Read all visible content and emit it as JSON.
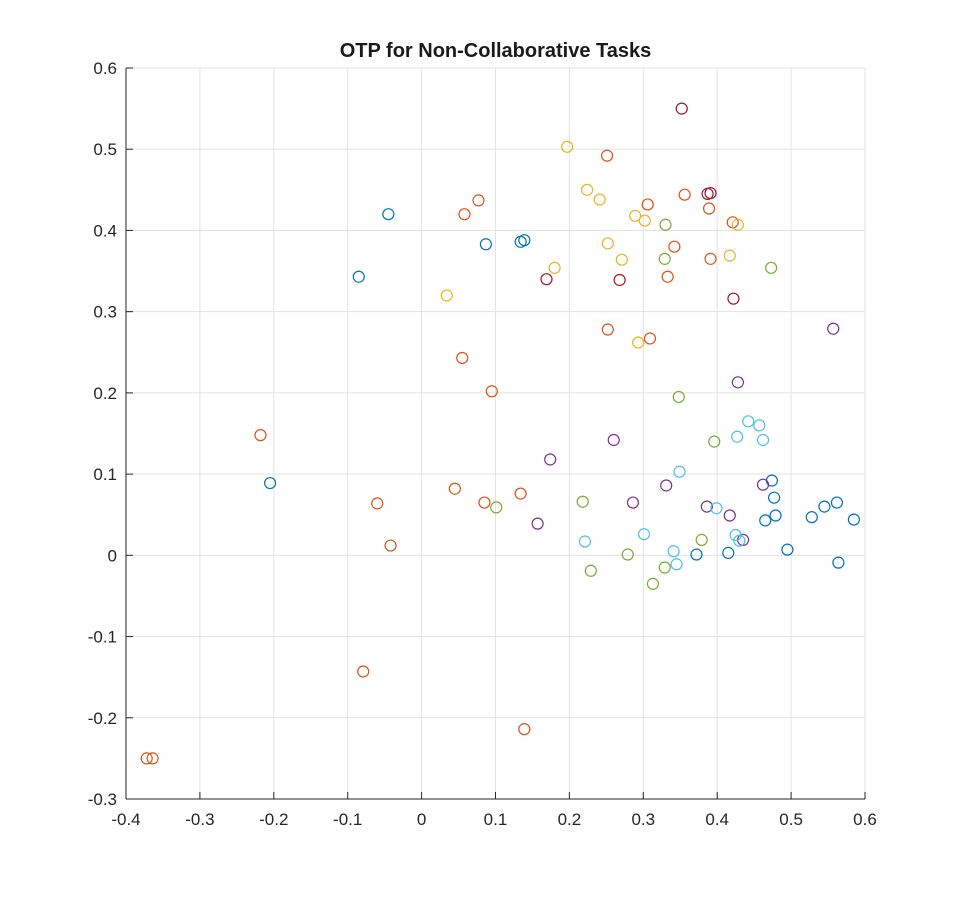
{
  "chart_data": {
    "type": "scatter",
    "title": "OTP for Non-Collaborative Tasks",
    "xlabel": "",
    "ylabel": "",
    "xlim": [
      -0.4,
      0.6
    ],
    "ylim": [
      -0.3,
      0.6
    ],
    "xticks": [
      -0.4,
      -0.3,
      -0.2,
      -0.1,
      0,
      0.1,
      0.2,
      0.3,
      0.4,
      0.5,
      0.6
    ],
    "yticks": [
      -0.3,
      -0.2,
      -0.1,
      0,
      0.1,
      0.2,
      0.3,
      0.4,
      0.5,
      0.6
    ],
    "xtick_labels": [
      "-0.4",
      "-0.3",
      "-0.2",
      "-0.1",
      "0",
      "0.1",
      "0.2",
      "0.3",
      "0.4",
      "0.5",
      "0.6"
    ],
    "ytick_labels": [
      "-0.3",
      "-0.2",
      "-0.1",
      "0",
      "0.1",
      "0.2",
      "0.3",
      "0.4",
      "0.5",
      "0.6"
    ],
    "grid": true,
    "marker": "open-circle",
    "series": [
      {
        "color": "#0072BD",
        "points": [
          [
            -0.045,
            0.42
          ],
          [
            -0.085,
            0.343
          ],
          [
            0.087,
            0.383
          ],
          [
            0.134,
            0.386
          ],
          [
            0.139,
            0.388
          ],
          [
            -0.205,
            0.089
          ],
          [
            0.372,
            0.001
          ],
          [
            0.415,
            0.003
          ],
          [
            0.465,
            0.043
          ],
          [
            0.474,
            0.092
          ],
          [
            0.477,
            0.071
          ],
          [
            0.479,
            0.049
          ],
          [
            0.495,
            0.007
          ],
          [
            0.528,
            0.047
          ],
          [
            0.545,
            0.06
          ],
          [
            0.562,
            0.065
          ],
          [
            0.564,
            -0.009
          ],
          [
            0.585,
            0.044
          ]
        ]
      },
      {
        "color": "#D95319",
        "points": [
          [
            0.077,
            0.437
          ],
          [
            0.058,
            0.42
          ],
          [
            0.055,
            0.243
          ],
          [
            0.095,
            0.202
          ],
          [
            -0.218,
            0.148
          ],
          [
            0.045,
            0.082
          ],
          [
            0.085,
            0.065
          ],
          [
            0.134,
            0.076
          ],
          [
            -0.06,
            0.064
          ],
          [
            -0.042,
            0.012
          ],
          [
            -0.079,
            -0.143
          ],
          [
            0.139,
            -0.214
          ],
          [
            -0.372,
            -0.25
          ],
          [
            -0.364,
            -0.25
          ],
          [
            0.251,
            0.492
          ],
          [
            0.306,
            0.432
          ],
          [
            0.356,
            0.444
          ],
          [
            0.389,
            0.427
          ],
          [
            0.342,
            0.38
          ],
          [
            0.391,
            0.365
          ],
          [
            0.333,
            0.343
          ],
          [
            0.252,
            0.278
          ],
          [
            0.309,
            0.267
          ],
          [
            0.421,
            0.41
          ]
        ]
      },
      {
        "color": "#EDB120",
        "points": [
          [
            0.197,
            0.503
          ],
          [
            0.224,
            0.45
          ],
          [
            0.241,
            0.438
          ],
          [
            0.289,
            0.418
          ],
          [
            0.302,
            0.412
          ],
          [
            0.252,
            0.384
          ],
          [
            0.271,
            0.364
          ],
          [
            0.18,
            0.354
          ],
          [
            0.034,
            0.32
          ],
          [
            0.293,
            0.262
          ],
          [
            0.417,
            0.369
          ],
          [
            0.428,
            0.407
          ]
        ]
      },
      {
        "color": "#A2142F",
        "points": [
          [
            0.352,
            0.55
          ],
          [
            0.387,
            0.445
          ],
          [
            0.391,
            0.446
          ],
          [
            0.268,
            0.339
          ],
          [
            0.169,
            0.34
          ],
          [
            0.422,
            0.316
          ]
        ]
      },
      {
        "color": "#7E2F8E",
        "points": [
          [
            0.557,
            0.279
          ],
          [
            0.428,
            0.213
          ],
          [
            0.26,
            0.142
          ],
          [
            0.174,
            0.118
          ],
          [
            0.331,
            0.086
          ],
          [
            0.462,
            0.087
          ],
          [
            0.286,
            0.065
          ],
          [
            0.386,
            0.06
          ],
          [
            0.417,
            0.049
          ],
          [
            0.157,
            0.039
          ],
          [
            0.435,
            0.019
          ]
        ]
      },
      {
        "color": "#77AC30",
        "points": [
          [
            0.33,
            0.407
          ],
          [
            0.329,
            0.365
          ],
          [
            0.473,
            0.354
          ],
          [
            0.348,
            0.195
          ],
          [
            0.396,
            0.14
          ],
          [
            0.218,
            0.066
          ],
          [
            0.101,
            0.059
          ],
          [
            0.279,
            0.001
          ],
          [
            0.379,
            0.019
          ],
          [
            0.229,
            -0.019
          ],
          [
            0.329,
            -0.015
          ],
          [
            0.313,
            -0.035
          ]
        ]
      },
      {
        "color": "#4DBEEE",
        "points": [
          [
            0.442,
            0.165
          ],
          [
            0.457,
            0.16
          ],
          [
            0.427,
            0.146
          ],
          [
            0.462,
            0.142
          ],
          [
            0.349,
            0.103
          ],
          [
            0.399,
            0.058
          ],
          [
            0.301,
            0.026
          ],
          [
            0.425,
            0.025
          ],
          [
            0.221,
            0.017
          ],
          [
            0.43,
            0.018
          ],
          [
            0.341,
            0.005
          ],
          [
            0.345,
            -0.011
          ]
        ]
      }
    ]
  }
}
